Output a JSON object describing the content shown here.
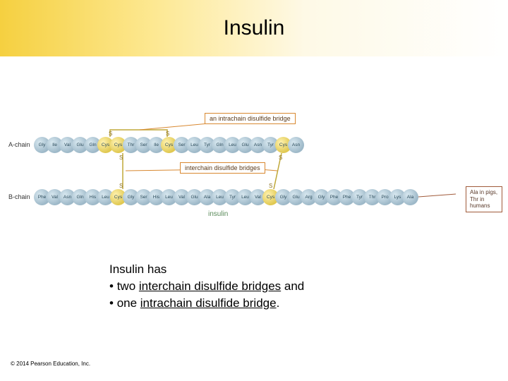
{
  "title": "Insulin",
  "chain_a_label": "A-chain",
  "chain_b_label": "B-chain",
  "chain_a": [
    "Gly",
    "Ile",
    "Val",
    "Glu",
    "Gln",
    "Cys",
    "Cys",
    "Thr",
    "Ser",
    "Ile",
    "Cys",
    "Ser",
    "Leu",
    "Tyr",
    "Gln",
    "Leu",
    "Glu",
    "Asn",
    "Tyr",
    "Cys",
    "Asn"
  ],
  "chain_b": [
    "Phe",
    "Val",
    "Asn",
    "Gln",
    "His",
    "Leu",
    "Cys",
    "Gly",
    "Ser",
    "His",
    "Leu",
    "Val",
    "Glu",
    "Ala",
    "Leu",
    "Tyr",
    "Leu",
    "Val",
    "Cys",
    "Gly",
    "Glu",
    "Arg",
    "Gly",
    "Phe",
    "Phe",
    "Tyr",
    "Thr",
    "Pro",
    "Lys",
    "Ala"
  ],
  "cys_a": [
    5,
    6,
    10,
    19
  ],
  "cys_b": [
    6,
    18
  ],
  "callout_intra": "an intrachain disulfide bridge",
  "callout_inter": "interchain disulfide bridges",
  "molecule_name": "insulin",
  "note_text": "Ala in pigs, Thr in humans",
  "body_intro": "Insulin has",
  "body_bullet1_pre": "two ",
  "body_bullet1_u": "interchain disulfide bridges",
  "body_bullet1_post": " and",
  "body_bullet2_pre": "one ",
  "body_bullet2_u": "intrachain disulfide bridge",
  "body_bullet2_post": ".",
  "copyright": "© 2014 Pearson Education, Inc.",
  "colors": {
    "header_grad_start": "#f5d040",
    "bead_fill": "#9db8c8",
    "cys_fill": "#e0c850",
    "bridge": "#c0a838",
    "callout_border": "#d88830",
    "note_border": "#a05a3a"
  }
}
